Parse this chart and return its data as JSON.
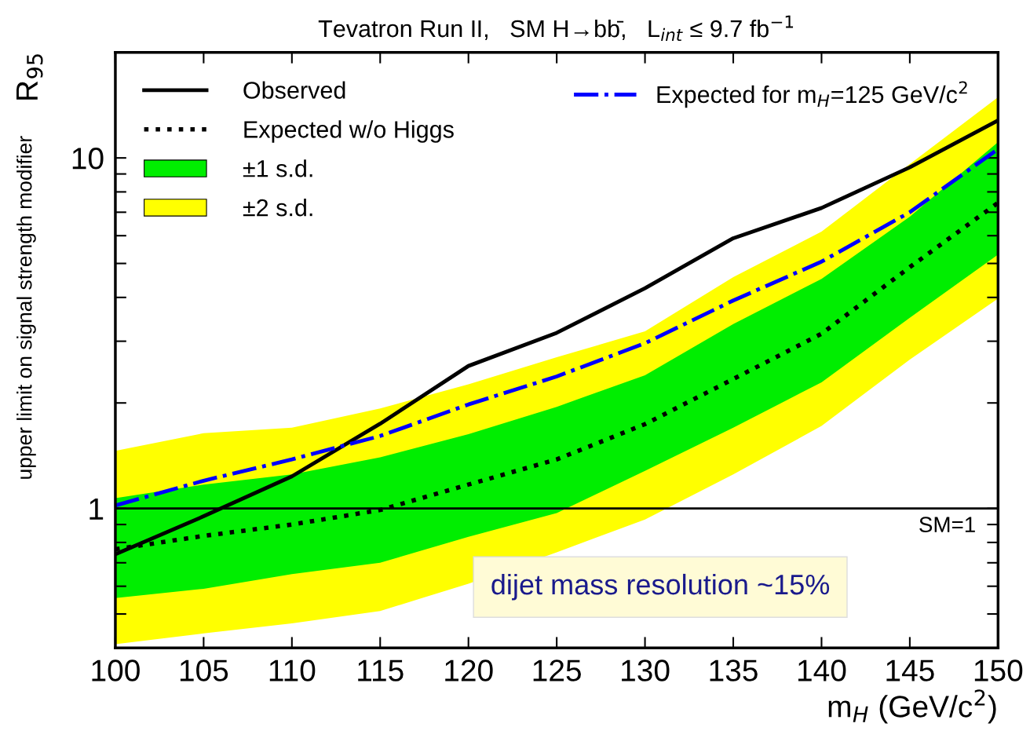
{
  "chart_data": {
    "type": "line",
    "title": "Tevatron Run II,   SM H→bb̄,   L$_{int}$ ≤ 9.7 fb$^{−1}$",
    "xlabel": "m$_{H}$ (GeV/c$^{2}$)",
    "ylabel": "upper limit on signal strength modifier",
    "annotations": [
      "R$_{95}$",
      "dijet mass resolution ~15%"
    ],
    "x": [
      100,
      105,
      110,
      115,
      120,
      125,
      130,
      135,
      140,
      145,
      150
    ],
    "series": [
      {
        "name": "±2 s.d.",
        "type": "area",
        "color": "#ffff00",
        "values": [
          null,
          null,
          null,
          null,
          null,
          null,
          null,
          null,
          null,
          null,
          null
        ],
        "lower": [
          0.41,
          0.44,
          0.47,
          0.51,
          0.61,
          0.75,
          0.93,
          1.25,
          1.72,
          2.66,
          3.97
        ],
        "upper": [
          1.46,
          1.64,
          1.7,
          1.93,
          2.26,
          2.7,
          3.2,
          4.57,
          6.16,
          9.6,
          14.9
        ]
      },
      {
        "name": "±1 s.d.",
        "type": "area",
        "color": "#00ee00",
        "values": [
          null,
          null,
          null,
          null,
          null,
          null,
          null,
          null,
          null,
          null,
          null
        ],
        "lower": [
          0.555,
          0.59,
          0.65,
          0.7,
          0.83,
          0.97,
          1.28,
          1.7,
          2.29,
          3.5,
          5.3
        ],
        "upper": [
          1.07,
          1.17,
          1.25,
          1.4,
          1.63,
          1.95,
          2.4,
          3.36,
          4.52,
          6.8,
          11.1
        ]
      },
      {
        "name": "Expected w/o Higgs",
        "type": "line",
        "color": "#000000",
        "line_style": "dotted",
        "values": [
          0.765,
          0.835,
          0.9,
          0.99,
          1.17,
          1.38,
          1.74,
          2.34,
          3.15,
          4.88,
          7.45
        ]
      },
      {
        "name": "Observed",
        "type": "line",
        "color": "#000000",
        "line_style": "solid",
        "values": [
          0.74,
          0.95,
          1.235,
          1.745,
          2.55,
          3.17,
          4.25,
          5.9,
          7.2,
          9.4,
          12.8
        ]
      },
      {
        "name": "Expected for m$_{H}$=125 GeV/c$^{2}$",
        "type": "line",
        "color": "#0000ff",
        "line_style": "dashdot",
        "values": [
          1.02,
          1.2,
          1.38,
          1.61,
          1.98,
          2.38,
          2.96,
          3.92,
          5.06,
          7.0,
          10.6
        ]
      }
    ],
    "log": "y",
    "xlim": [
      100,
      150
    ],
    "ylim": [
      0.4,
      20
    ],
    "xticks": [
      100,
      105,
      110,
      115,
      120,
      125,
      130,
      135,
      140,
      145,
      150
    ],
    "yticks": [
      {
        "value": 0.4,
        "label": null
      },
      {
        "value": 0.5,
        "label": null
      },
      {
        "value": 0.6,
        "label": null
      },
      {
        "value": 0.7,
        "label": null
      },
      {
        "value": 0.8,
        "label": null
      },
      {
        "value": 0.9,
        "label": null
      },
      1,
      {
        "value": 2,
        "label": null
      },
      {
        "value": 3,
        "label": null
      },
      {
        "value": 4,
        "label": null
      },
      {
        "value": 5,
        "label": null
      },
      {
        "value": 6,
        "label": null
      },
      {
        "value": 7,
        "label": null
      },
      {
        "value": 8,
        "label": null
      },
      {
        "value": 9,
        "label": null
      },
      10,
      {
        "value": 20,
        "label": null
      }
    ],
    "ref_lines": [
      {
        "axis": "y",
        "value": 1,
        "label": "SM=1",
        "color": "#000000",
        "line_style": "solid"
      }
    ],
    "grid": false,
    "legend": "top"
  }
}
